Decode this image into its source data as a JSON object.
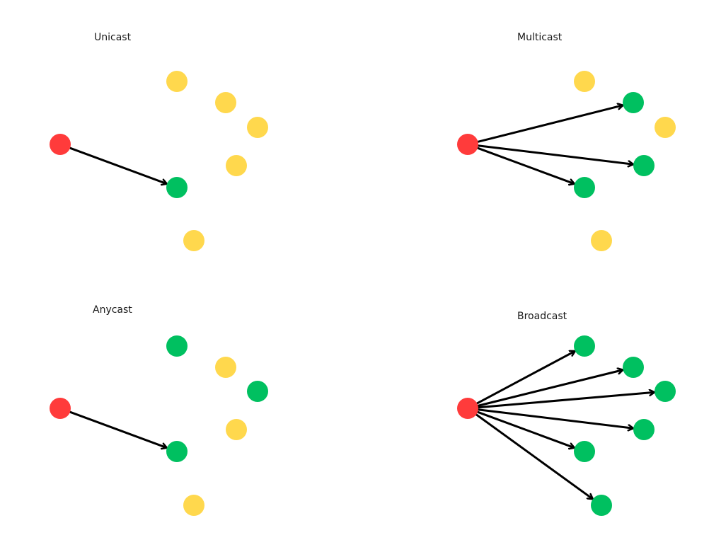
{
  "colors": {
    "source": "#FF3B3B",
    "receiver": "#00C060",
    "non_receiver": "#FFD84D",
    "arrow": "#000000",
    "background": "#FFFFFF"
  },
  "panels": [
    {
      "id": "unicast",
      "title": "Unicast",
      "nodes": [
        {
          "role": "source",
          "color": "red"
        },
        {
          "role": "non-receiver",
          "color": "yellow"
        },
        {
          "role": "non-receiver",
          "color": "yellow"
        },
        {
          "role": "non-receiver",
          "color": "yellow"
        },
        {
          "role": "non-receiver",
          "color": "yellow"
        },
        {
          "role": "receiver",
          "color": "green"
        },
        {
          "role": "non-receiver",
          "color": "yellow"
        }
      ],
      "arrow_count": 1
    },
    {
      "id": "multicast",
      "title": "Multicast",
      "nodes": [
        {
          "role": "source",
          "color": "red"
        },
        {
          "role": "non-receiver",
          "color": "yellow"
        },
        {
          "role": "receiver",
          "color": "green"
        },
        {
          "role": "non-receiver",
          "color": "yellow"
        },
        {
          "role": "receiver",
          "color": "green"
        },
        {
          "role": "receiver",
          "color": "green"
        },
        {
          "role": "non-receiver",
          "color": "yellow"
        }
      ],
      "arrow_count": 3
    },
    {
      "id": "anycast",
      "title": "Anycast",
      "nodes": [
        {
          "role": "source",
          "color": "red"
        },
        {
          "role": "receiver-group",
          "color": "green"
        },
        {
          "role": "non-receiver",
          "color": "yellow"
        },
        {
          "role": "receiver-group",
          "color": "green"
        },
        {
          "role": "non-receiver",
          "color": "yellow"
        },
        {
          "role": "receiver",
          "color": "green"
        },
        {
          "role": "non-receiver",
          "color": "yellow"
        }
      ],
      "arrow_count": 1
    },
    {
      "id": "broadcast",
      "title": "Broadcast",
      "nodes": [
        {
          "role": "source",
          "color": "red"
        },
        {
          "role": "receiver",
          "color": "green"
        },
        {
          "role": "receiver",
          "color": "green"
        },
        {
          "role": "receiver",
          "color": "green"
        },
        {
          "role": "receiver",
          "color": "green"
        },
        {
          "role": "receiver",
          "color": "green"
        },
        {
          "role": "receiver",
          "color": "green"
        }
      ],
      "arrow_count": 6
    }
  ]
}
